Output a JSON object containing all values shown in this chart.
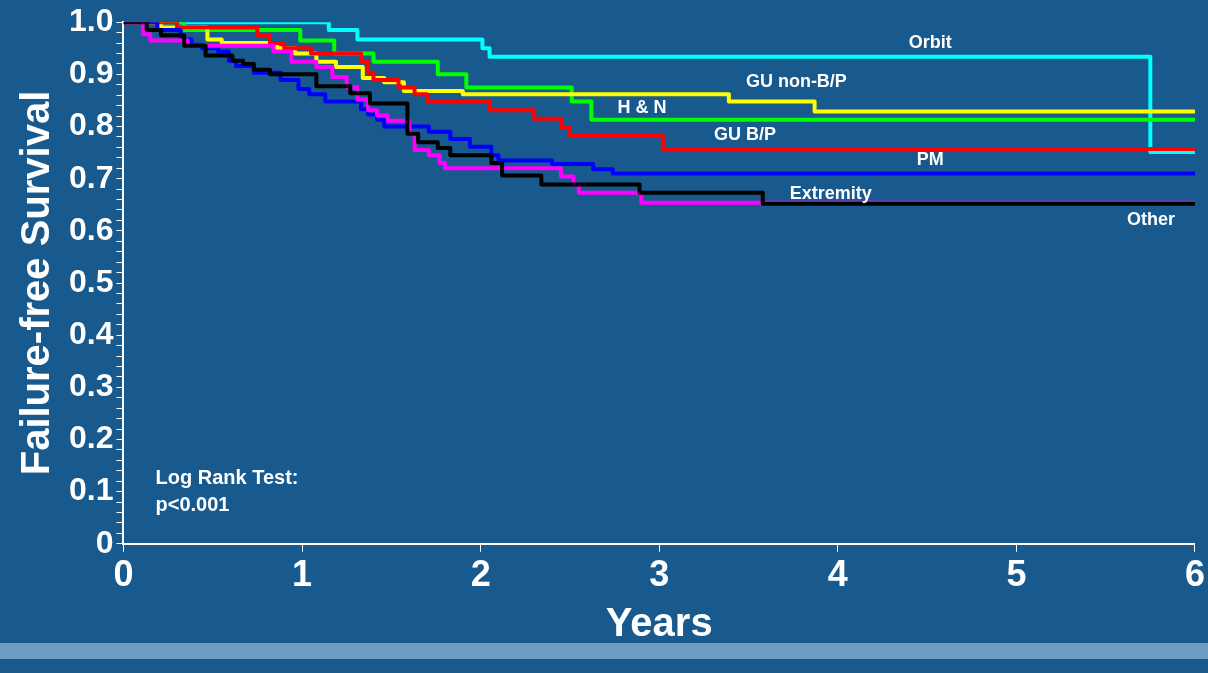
{
  "chart_data": {
    "type": "step",
    "xlabel": "Years",
    "ylabel": "Failure-free Survival",
    "xlim": [
      0,
      6
    ],
    "xticks": [
      0,
      1,
      2,
      3,
      4,
      5,
      6
    ],
    "ylim": [
      0,
      1
    ],
    "yticks": [
      {
        "value": 1,
        "label": "1.0"
      },
      {
        "value": 0.98,
        "label": null
      },
      {
        "value": 0.96,
        "label": null
      },
      {
        "value": 0.94,
        "label": null
      },
      {
        "value": 0.92,
        "label": null
      },
      0.9,
      {
        "value": 0.88,
        "label": null
      },
      {
        "value": 0.86,
        "label": null
      },
      {
        "value": 0.84,
        "label": null
      },
      {
        "value": 0.82,
        "label": null
      },
      0.8,
      {
        "value": 0.78,
        "label": null
      },
      {
        "value": 0.76,
        "label": null
      },
      {
        "value": 0.74,
        "label": null
      },
      {
        "value": 0.72,
        "label": null
      },
      0.7,
      {
        "value": 0.68,
        "label": null
      },
      {
        "value": 0.66,
        "label": null
      },
      {
        "value": 0.64,
        "label": null
      },
      {
        "value": 0.62,
        "label": null
      },
      0.6,
      {
        "value": 0.58,
        "label": null
      },
      {
        "value": 0.56,
        "label": null
      },
      {
        "value": 0.54,
        "label": null
      },
      {
        "value": 0.52,
        "label": null
      },
      0.5,
      {
        "value": 0.48,
        "label": null
      },
      {
        "value": 0.46,
        "label": null
      },
      {
        "value": 0.44,
        "label": null
      },
      {
        "value": 0.42,
        "label": null
      },
      0.4,
      {
        "value": 0.38,
        "label": null
      },
      {
        "value": 0.36,
        "label": null
      },
      {
        "value": 0.34,
        "label": null
      },
      {
        "value": 0.32,
        "label": null
      },
      0.3,
      {
        "value": 0.28,
        "label": null
      },
      {
        "value": 0.26,
        "label": null
      },
      {
        "value": 0.24,
        "label": null
      },
      {
        "value": 0.22,
        "label": null
      },
      0.2,
      {
        "value": 0.18,
        "label": null
      },
      {
        "value": 0.16,
        "label": null
      },
      {
        "value": 0.14,
        "label": null
      },
      {
        "value": 0.12,
        "label": null
      },
      0.1,
      {
        "value": 0.08,
        "label": null
      },
      {
        "value": 0.06,
        "label": null
      },
      {
        "value": 0.04,
        "label": null
      },
      {
        "value": 0.02,
        "label": null
      },
      0
    ],
    "grid": false,
    "legend": false,
    "marker": "none",
    "line_style": "solid",
    "series": [
      {
        "name": "Extremity",
        "color": "#000000",
        "x": [
          0,
          0.13,
          0.21,
          0.34,
          0.46,
          0.61,
          0.67,
          0.73,
          0.82,
          1.08,
          1.27,
          1.38,
          1.59,
          1.65,
          1.76,
          1.83,
          2.06,
          2.12,
          2.34,
          2.89,
          3.58,
          6
        ],
        "values": [
          1,
          0.985,
          0.975,
          0.955,
          0.936,
          0.926,
          0.92,
          0.909,
          0.9,
          0.877,
          0.864,
          0.844,
          0.786,
          0.77,
          0.759,
          0.745,
          0.73,
          0.706,
          0.689,
          0.673,
          0.652,
          0.652
        ]
      },
      {
        "name": "Other",
        "color": "#ff00ff",
        "x": [
          0,
          0.11,
          0.15,
          0.36,
          0.84,
          0.94,
          1.08,
          1.17,
          1.25,
          1.31,
          1.37,
          1.42,
          1.48,
          1.6,
          1.63,
          1.71,
          1.77,
          1.8,
          2.45,
          2.52,
          2.55,
          2.9,
          6
        ],
        "values": [
          1,
          0.977,
          0.965,
          0.955,
          0.944,
          0.924,
          0.914,
          0.895,
          0.875,
          0.852,
          0.831,
          0.821,
          0.811,
          0.786,
          0.755,
          0.745,
          0.73,
          0.72,
          0.704,
          0.689,
          0.673,
          0.654,
          0.654
        ]
      },
      {
        "name": "PM",
        "color": "#0000ff",
        "x": [
          0,
          0.19,
          0.32,
          0.38,
          0.44,
          0.53,
          0.59,
          0.63,
          0.73,
          0.88,
          0.98,
          1.04,
          1.13,
          1.33,
          1.37,
          1.42,
          1.46,
          1.71,
          1.83,
          1.94,
          2.06,
          2.1,
          2.4,
          2.63,
          2.74,
          6
        ],
        "values": [
          1,
          0.985,
          0.967,
          0.957,
          0.95,
          0.944,
          0.926,
          0.916,
          0.903,
          0.889,
          0.872,
          0.862,
          0.848,
          0.833,
          0.823,
          0.813,
          0.8,
          0.79,
          0.776,
          0.761,
          0.745,
          0.735,
          0.728,
          0.718,
          0.71,
          0.71
        ]
      },
      {
        "name": "GU B/P",
        "color": "#ff0000",
        "x": [
          0,
          0.3,
          0.75,
          0.82,
          0.9,
          1.05,
          1.33,
          1.37,
          1.4,
          1.54,
          1.63,
          1.7,
          2.05,
          2.3,
          2.45,
          2.5,
          3.02,
          6
        ],
        "values": [
          1,
          0.99,
          0.975,
          0.96,
          0.95,
          0.94,
          0.924,
          0.903,
          0.889,
          0.875,
          0.862,
          0.848,
          0.831,
          0.815,
          0.798,
          0.782,
          0.757,
          0.757
        ]
      },
      {
        "name": "GU non-B/P",
        "color": "#ffff00",
        "x": [
          0,
          0.21,
          0.47,
          0.55,
          0.86,
          0.96,
          1.08,
          1.19,
          1.34,
          1.46,
          1.57,
          1.9,
          3.39,
          3.87,
          6
        ],
        "values": [
          1,
          0.99,
          0.967,
          0.96,
          0.95,
          0.94,
          0.924,
          0.914,
          0.893,
          0.885,
          0.868,
          0.862,
          0.848,
          0.829,
          0.829
        ]
      },
      {
        "name": "H & N",
        "color": "#00ff00",
        "x": [
          0,
          0.34,
          0.99,
          1.18,
          1.4,
          1.76,
          1.92,
          2.51,
          2.62,
          6
        ],
        "values": [
          1,
          0.985,
          0.965,
          0.94,
          0.924,
          0.9,
          0.875,
          0.848,
          0.813,
          0.813
        ]
      },
      {
        "name": "Orbit",
        "color": "#00ffff",
        "x": [
          0,
          1.15,
          1.31,
          2.01,
          2.05,
          5.75,
          6
        ],
        "values": [
          1,
          0.985,
          0.967,
          0.95,
          0.934,
          0.751,
          0.751
        ]
      }
    ],
    "annotations": [
      "Log Rank Test:\np<0.001"
    ]
  }
}
